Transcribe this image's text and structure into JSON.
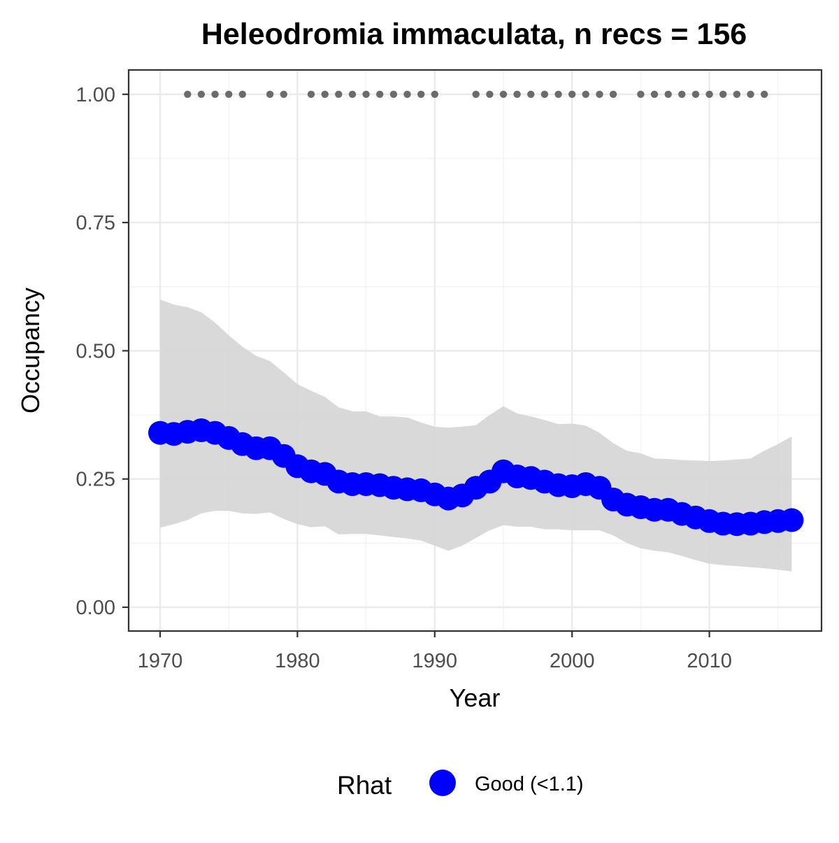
{
  "chart_data": {
    "type": "line",
    "title": "Heleodromia immaculata, n recs = 156",
    "xlabel": "Year",
    "ylabel": "Occupancy",
    "xlim": [
      1967.8,
      1917.9
    ],
    "ylim": [
      -0.045,
      1.05
    ],
    "x_ticks": [
      1970,
      1980,
      1990,
      2000,
      2010
    ],
    "x_tick_labels": [
      "1970",
      "1980",
      "1990",
      "2000",
      "2010"
    ],
    "y_ticks": [
      0,
      0.25,
      0.5,
      0.75,
      1.0
    ],
    "y_tick_labels": [
      "0.00",
      "0.25",
      "0.50",
      "0.75",
      "1.00"
    ],
    "grid": true,
    "legend": {
      "title": "Rhat",
      "placement": "bottom",
      "entries": [
        {
          "label": "Good (<1.1)",
          "color": "#0000ff"
        }
      ]
    },
    "colors": {
      "series": "#0000ff",
      "ribbon": "#d6d6d6",
      "records": "#6b6b6b",
      "grid": "#ebebeb",
      "panel_border": "#333333"
    },
    "series": [
      {
        "x": [
          1970,
          1971,
          1972,
          1973,
          1974,
          1975,
          1976,
          1977,
          1978,
          1979,
          1980,
          1981,
          1982,
          1983,
          1984,
          1985,
          1986,
          1987,
          1988,
          1989,
          1990,
          1991,
          1992,
          1993,
          1994,
          1995,
          1996,
          1997,
          1998,
          1999,
          2000,
          2001,
          2002,
          2003,
          2004,
          2005,
          2006,
          2007,
          2008,
          2009,
          2010,
          2011,
          2012,
          2013,
          2014,
          2015,
          2016
        ],
        "values": [
          0.34,
          0.338,
          0.342,
          0.345,
          0.34,
          0.33,
          0.318,
          0.31,
          0.31,
          0.295,
          0.275,
          0.265,
          0.26,
          0.245,
          0.24,
          0.24,
          0.238,
          0.233,
          0.23,
          0.228,
          0.22,
          0.212,
          0.218,
          0.233,
          0.245,
          0.265,
          0.255,
          0.252,
          0.245,
          0.238,
          0.236,
          0.24,
          0.233,
          0.21,
          0.2,
          0.195,
          0.19,
          0.19,
          0.182,
          0.175,
          0.168,
          0.163,
          0.162,
          0.163,
          0.166,
          0.168,
          0.17
        ],
        "lower": [
          0.155,
          0.162,
          0.17,
          0.183,
          0.188,
          0.188,
          0.183,
          0.182,
          0.185,
          0.172,
          0.162,
          0.156,
          0.158,
          0.142,
          0.143,
          0.143,
          0.14,
          0.137,
          0.134,
          0.13,
          0.12,
          0.11,
          0.12,
          0.135,
          0.15,
          0.16,
          0.157,
          0.157,
          0.152,
          0.152,
          0.15,
          0.15,
          0.15,
          0.14,
          0.125,
          0.115,
          0.11,
          0.107,
          0.1,
          0.092,
          0.085,
          0.082,
          0.08,
          0.078,
          0.076,
          0.073,
          0.07
        ],
        "upper": [
          0.6,
          0.59,
          0.585,
          0.575,
          0.555,
          0.53,
          0.508,
          0.49,
          0.48,
          0.458,
          0.435,
          0.422,
          0.41,
          0.39,
          0.382,
          0.382,
          0.372,
          0.372,
          0.37,
          0.36,
          0.352,
          0.35,
          0.352,
          0.355,
          0.375,
          0.392,
          0.378,
          0.372,
          0.365,
          0.357,
          0.358,
          0.354,
          0.34,
          0.32,
          0.305,
          0.3,
          0.29,
          0.289,
          0.287,
          0.286,
          0.285,
          0.286,
          0.288,
          0.29,
          0.305,
          0.318,
          0.333
        ]
      }
    ],
    "records": {
      "y": 1.0,
      "x": [
        1972,
        1973,
        1974,
        1975,
        1976,
        1978,
        1979,
        1981,
        1982,
        1983,
        1984,
        1985,
        1986,
        1987,
        1988,
        1989,
        1990,
        1993,
        1994,
        1995,
        1996,
        1997,
        1998,
        1999,
        2000,
        2001,
        2002,
        2003,
        2005,
        2006,
        2007,
        2008,
        2009,
        2010,
        2011,
        2012,
        2013,
        2014
      ]
    }
  }
}
